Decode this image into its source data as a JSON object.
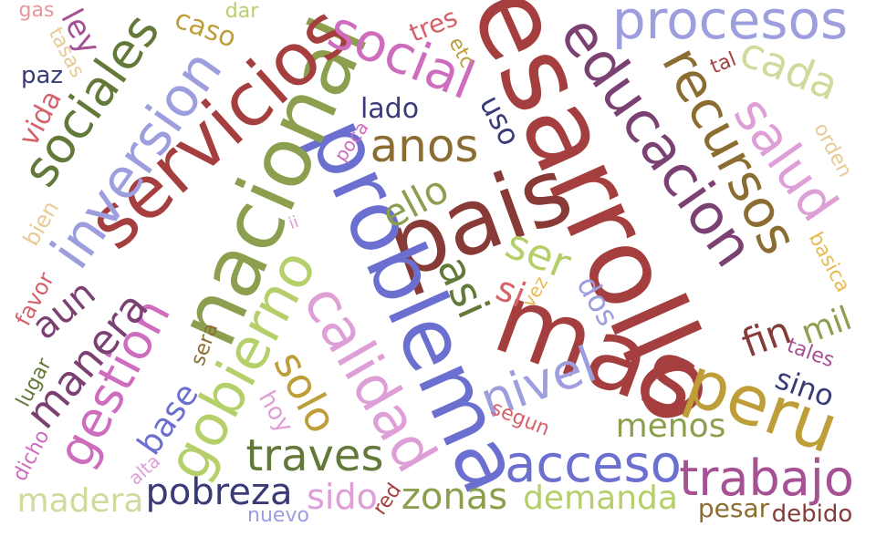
{
  "words": [
    {
      "text": "desarrollo",
      "color": "#a53f3f"
    },
    {
      "text": "mas",
      "color": "#a53f3f"
    },
    {
      "text": "pais",
      "color": "#873a36"
    },
    {
      "text": "problema",
      "color": "#6b6fcf"
    },
    {
      "text": "nacional",
      "color": "#8c9f4e"
    },
    {
      "text": "educacion",
      "color": "#7b4173"
    },
    {
      "text": "servicios",
      "color": "#a53f3f"
    },
    {
      "text": "calidad",
      "color": "#de9ed6"
    },
    {
      "text": "recursos",
      "color": "#8c6d31"
    },
    {
      "text": "peru",
      "color": "#bd9e39"
    },
    {
      "text": "procesos",
      "color": "#9c9ede"
    },
    {
      "text": "inversion",
      "color": "#9c9ede"
    },
    {
      "text": "gobierno",
      "color": "#b5cf6b"
    },
    {
      "text": "social",
      "color": "#ce6dbd"
    },
    {
      "text": "salud",
      "color": "#de9ed6"
    },
    {
      "text": "sociales",
      "color": "#637939"
    },
    {
      "text": "acceso",
      "color": "#6b6fcf"
    },
    {
      "text": "trabajo",
      "color": "#a55194"
    },
    {
      "text": "nivel",
      "color": "#9c9ede"
    },
    {
      "text": "anos",
      "color": "#8c6d31"
    },
    {
      "text": "gestion",
      "color": "#ce6dbd"
    },
    {
      "text": "manera",
      "color": "#7b4173"
    },
    {
      "text": "traves",
      "color": "#637939"
    },
    {
      "text": "pobreza",
      "color": "#393b79"
    },
    {
      "text": "cada",
      "color": "#cedb9c"
    },
    {
      "text": "asi",
      "color": "#637939"
    },
    {
      "text": "solo",
      "color": "#bd9e39"
    },
    {
      "text": "ser",
      "color": "#b5cf6b"
    },
    {
      "text": "zonas",
      "color": "#8c9f4e"
    },
    {
      "text": "ello",
      "color": "#8c9f4e"
    },
    {
      "text": "menos",
      "color": "#8c9f4e"
    },
    {
      "text": "demanda",
      "color": "#b5cf6b"
    },
    {
      "text": "base",
      "color": "#6b6fcf"
    },
    {
      "text": "madera",
      "color": "#cedb9c"
    },
    {
      "text": "mil",
      "color": "#8c9f4e"
    },
    {
      "text": "aun",
      "color": "#7b4173"
    },
    {
      "text": "sino",
      "color": "#393b79"
    },
    {
      "text": "sido",
      "color": "#de9ed6"
    },
    {
      "text": "si",
      "color": "#d6616b"
    },
    {
      "text": "dos",
      "color": "#9c9ede"
    },
    {
      "text": "lado",
      "color": "#393b79"
    },
    {
      "text": "uso",
      "color": "#393b79"
    },
    {
      "text": "pesar",
      "color": "#8c6d31"
    },
    {
      "text": "debido",
      "color": "#843c39"
    },
    {
      "text": "vida",
      "color": "#d6616b"
    },
    {
      "text": "caso",
      "color": "#bd9e39"
    },
    {
      "text": "tres",
      "color": "#d6616b"
    },
    {
      "text": "ley",
      "color": "#a55194"
    },
    {
      "text": "paz",
      "color": "#393b79"
    },
    {
      "text": "nuevo",
      "color": "#9c9ede"
    },
    {
      "text": "segun",
      "color": "#d6616b"
    },
    {
      "text": "hoy",
      "color": "#de9ed6"
    },
    {
      "text": "bien",
      "color": "#e7cb94"
    },
    {
      "text": "favor",
      "color": "#d6616b"
    },
    {
      "text": "lugar",
      "color": "#637939"
    },
    {
      "text": "dicho",
      "color": "#ce6dbd"
    },
    {
      "text": "alta",
      "color": "#de9ed6"
    },
    {
      "text": "sera",
      "color": "#8c6d31"
    },
    {
      "text": "red",
      "color": "#a53f3f"
    },
    {
      "text": "vez",
      "color": "#e7ba52"
    },
    {
      "text": "tales",
      "color": "#a55194"
    },
    {
      "text": "basica",
      "color": "#e7ba52"
    },
    {
      "text": "orden",
      "color": "#e7cb94"
    },
    {
      "text": "tal",
      "color": "#a53f3f"
    },
    {
      "text": "etc",
      "color": "#bd9e39"
    },
    {
      "text": "poca",
      "color": "#ce6dbd"
    },
    {
      "text": "ii",
      "color": "#de9ed6"
    },
    {
      "text": "gas",
      "color": "#e7969c"
    },
    {
      "text": "dar",
      "color": "#b5cf6b"
    },
    {
      "text": "tasas",
      "color": "#e7cb94"
    },
    {
      "text": "fin",
      "color": "#843c39"
    }
  ]
}
